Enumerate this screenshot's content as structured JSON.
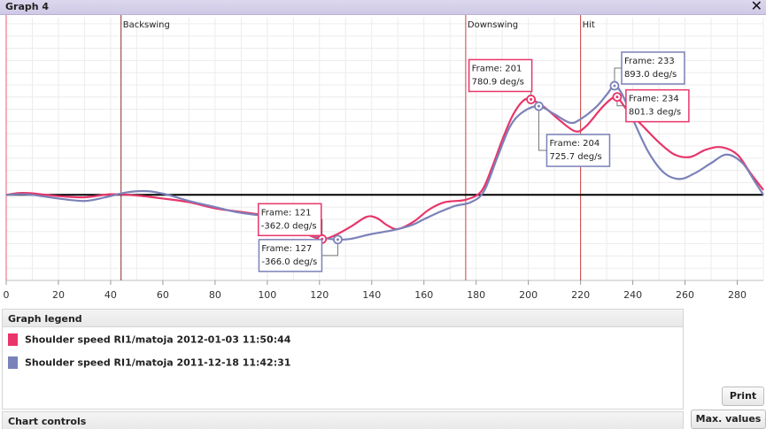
{
  "window": {
    "title": "Graph 4",
    "close_glyph": "✕",
    "close_icon": "close-icon"
  },
  "legend": {
    "title": "Graph legend",
    "items": [
      {
        "label": "Shoulder speed RI1/matoja 2012-01-03 11:50:44",
        "color": "#e8356a"
      },
      {
        "label": "Shoulder speed RI1/matoja 2011-12-18 11:42:31",
        "color": "#7b82b8"
      }
    ]
  },
  "controls": {
    "title": "Chart controls"
  },
  "buttons": {
    "print": "Print",
    "max_values": "Max. values"
  },
  "chart_data": {
    "type": "line",
    "xlim": [
      0,
      290
    ],
    "ylim": [
      -700,
      1450
    ],
    "grid": true,
    "xticks": [
      0,
      20,
      40,
      60,
      80,
      100,
      120,
      140,
      160,
      180,
      200,
      220,
      240,
      260,
      280
    ],
    "zero_line": 0,
    "phase_markers": [
      {
        "x": 0,
        "label": ""
      },
      {
        "x": 44,
        "label": "Backswing"
      },
      {
        "x": 176,
        "label": "Downswing"
      },
      {
        "x": 220,
        "label": "Hit"
      }
    ],
    "series": [
      {
        "name": "Shoulder speed RI1/matoja 2012-01-03 11:50:44",
        "color": "#e8356a",
        "points": [
          [
            0,
            0
          ],
          [
            5,
            15
          ],
          [
            10,
            12
          ],
          [
            20,
            -10
          ],
          [
            30,
            -20
          ],
          [
            40,
            5
          ],
          [
            50,
            -5
          ],
          [
            60,
            -30
          ],
          [
            70,
            -60
          ],
          [
            80,
            -110
          ],
          [
            90,
            -140
          ],
          [
            100,
            -175
          ],
          [
            110,
            -270
          ],
          [
            116,
            -330
          ],
          [
            121,
            -362
          ],
          [
            126,
            -330
          ],
          [
            132,
            -260
          ],
          [
            138,
            -180
          ],
          [
            142,
            -190
          ],
          [
            146,
            -250
          ],
          [
            150,
            -280
          ],
          [
            156,
            -220
          ],
          [
            162,
            -120
          ],
          [
            168,
            -60
          ],
          [
            176,
            -40
          ],
          [
            182,
            30
          ],
          [
            186,
            220
          ],
          [
            190,
            450
          ],
          [
            194,
            650
          ],
          [
            198,
            770
          ],
          [
            201,
            781
          ],
          [
            206,
            720
          ],
          [
            212,
            610
          ],
          [
            218,
            520
          ],
          [
            222,
            560
          ],
          [
            228,
            710
          ],
          [
            232,
            790
          ],
          [
            234,
            801
          ],
          [
            238,
            690
          ],
          [
            244,
            560
          ],
          [
            250,
            430
          ],
          [
            256,
            330
          ],
          [
            262,
            310
          ],
          [
            268,
            370
          ],
          [
            274,
            390
          ],
          [
            280,
            330
          ],
          [
            285,
            180
          ],
          [
            290,
            40
          ]
        ]
      },
      {
        "name": "Shoulder speed RI1/matoja 2011-12-18 11:42:31",
        "color": "#7b82b8",
        "points": [
          [
            0,
            0
          ],
          [
            5,
            5
          ],
          [
            10,
            0
          ],
          [
            20,
            -30
          ],
          [
            30,
            -50
          ],
          [
            38,
            -20
          ],
          [
            46,
            20
          ],
          [
            54,
            30
          ],
          [
            62,
            0
          ],
          [
            70,
            -50
          ],
          [
            80,
            -100
          ],
          [
            88,
            -140
          ],
          [
            96,
            -165
          ],
          [
            104,
            -190
          ],
          [
            110,
            -250
          ],
          [
            116,
            -320
          ],
          [
            121,
            -350
          ],
          [
            127,
            -366
          ],
          [
            132,
            -360
          ],
          [
            140,
            -320
          ],
          [
            148,
            -290
          ],
          [
            155,
            -250
          ],
          [
            160,
            -200
          ],
          [
            166,
            -140
          ],
          [
            172,
            -90
          ],
          [
            178,
            -60
          ],
          [
            183,
            30
          ],
          [
            188,
            300
          ],
          [
            193,
            560
          ],
          [
            198,
            680
          ],
          [
            204,
            726
          ],
          [
            210,
            660
          ],
          [
            216,
            590
          ],
          [
            220,
            620
          ],
          [
            226,
            720
          ],
          [
            230,
            820
          ],
          [
            233,
            893
          ],
          [
            236,
            820
          ],
          [
            240,
            620
          ],
          [
            246,
            350
          ],
          [
            252,
            180
          ],
          [
            258,
            130
          ],
          [
            264,
            180
          ],
          [
            270,
            260
          ],
          [
            276,
            330
          ],
          [
            282,
            260
          ],
          [
            287,
            100
          ],
          [
            290,
            0
          ]
        ]
      }
    ],
    "annotations": [
      {
        "series": 0,
        "frame_text": "Frame: 121",
        "value_text": "-362.0 deg/s"
      },
      {
        "series": 1,
        "frame_text": "Frame: 127",
        "value_text": "-366.0 deg/s"
      },
      {
        "series": 0,
        "frame_text": "Frame: 201",
        "value_text": "780.9 deg/s"
      },
      {
        "series": 1,
        "frame_text": "Frame: 204",
        "value_text": "725.7 deg/s"
      },
      {
        "series": 1,
        "frame_text": "Frame: 233",
        "value_text": "893.0 deg/s"
      },
      {
        "series": 0,
        "frame_text": "Frame: 234",
        "value_text": "801.3 deg/s"
      }
    ]
  }
}
